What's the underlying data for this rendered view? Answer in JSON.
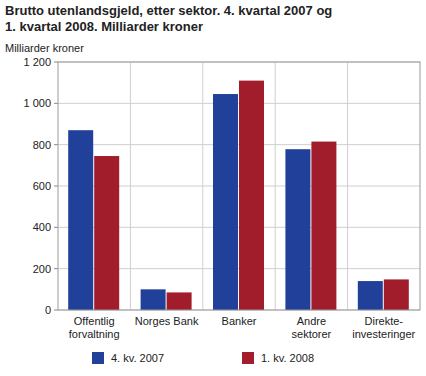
{
  "chart_data": {
    "type": "bar",
    "title": "Brutto utenlandsgjeld, etter sektor. 4. kvartal 2007 og\n1. kvartal 2008. Milliarder kroner",
    "y_label": "Milliarder kroner",
    "categories": [
      "Offentlig\nforvaltning",
      "Norges Bank",
      "Banker",
      "Andre\nsektorer",
      "Direkte-\ninvesteringer"
    ],
    "series": [
      {
        "name": "4. kv. 2007",
        "color": "#21409a",
        "values": [
          870,
          100,
          1045,
          778,
          140
        ]
      },
      {
        "name": "1. kv. 2008",
        "color": "#a11d2b",
        "values": [
          745,
          85,
          1110,
          815,
          148
        ]
      }
    ],
    "ylim": [
      0,
      1200
    ],
    "yticks": [
      0,
      200,
      400,
      600,
      800,
      {
        "value": 1000,
        "label": "1 000"
      },
      {
        "value": 1200,
        "label": "1 200"
      }
    ],
    "grid": true,
    "legend": "bottom"
  }
}
